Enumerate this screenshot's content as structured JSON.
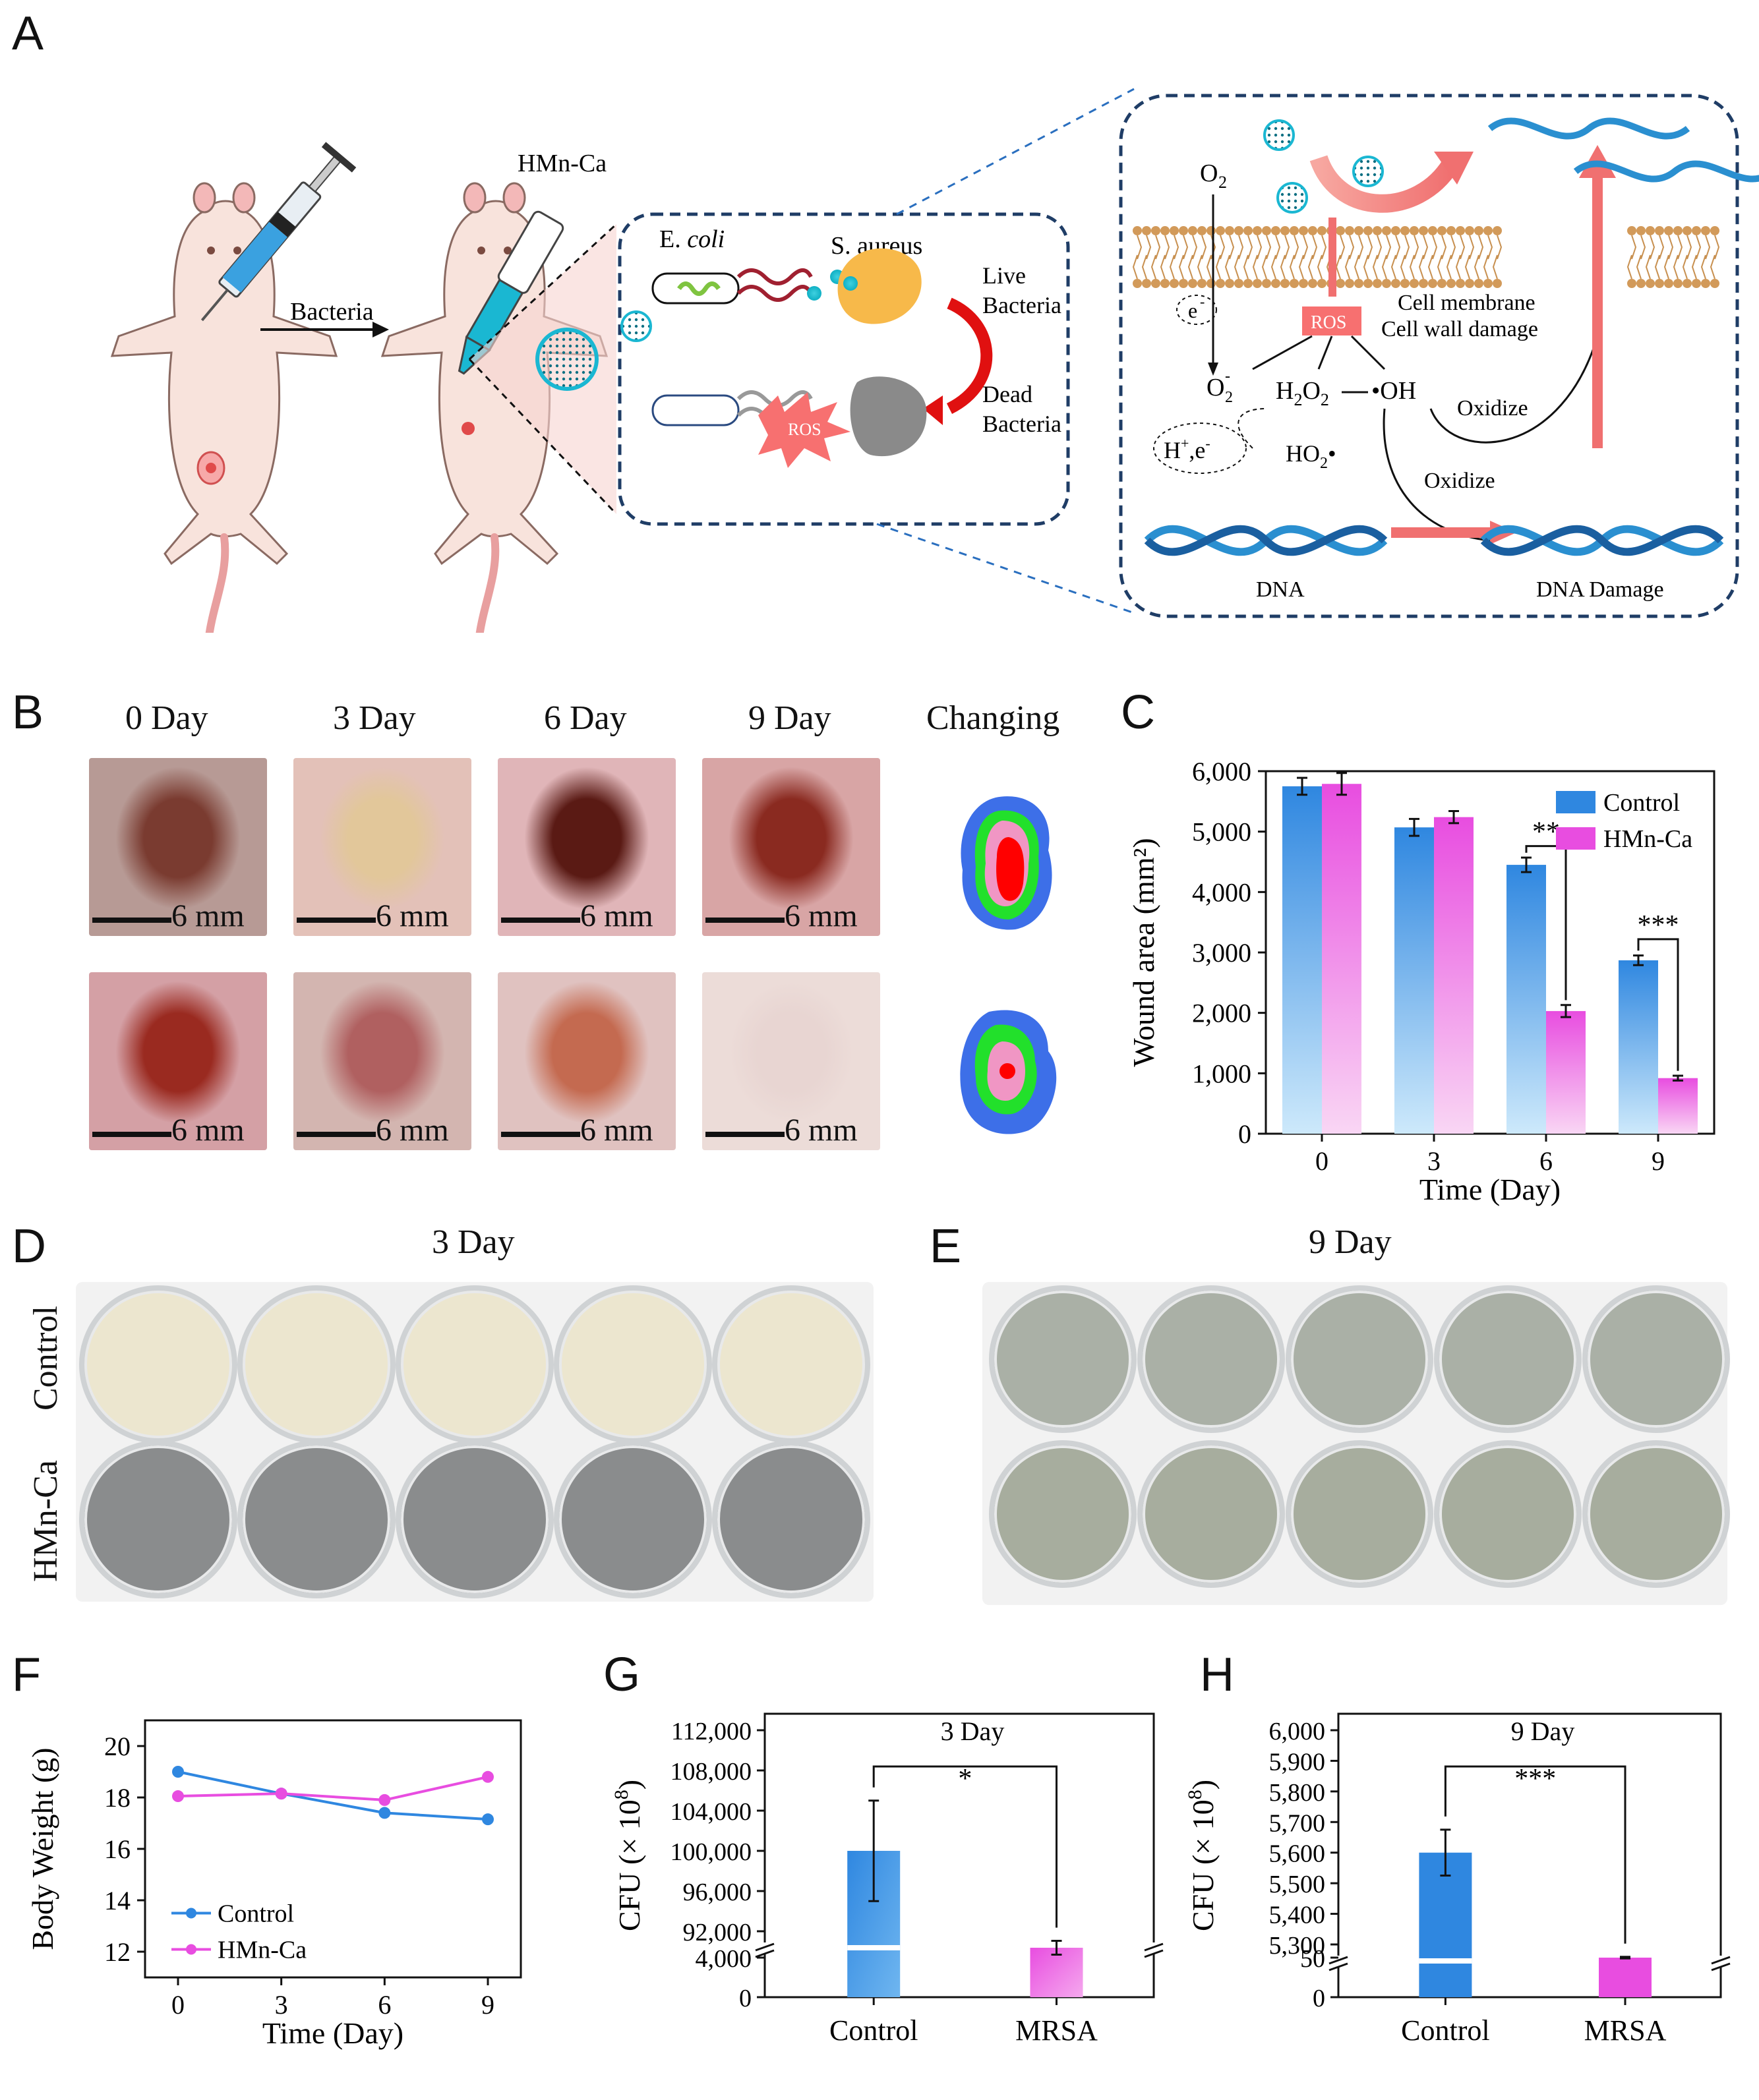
{
  "panels": {
    "A": "A",
    "B": "B",
    "C": "C",
    "D": "D",
    "E": "E",
    "F": "F",
    "G": "G",
    "H": "H"
  },
  "panelA": {
    "hmn_label": "HMn-Ca",
    "bacteria_label": "Bacteria",
    "ecoli": "E. ",
    "ecoli_italic": "coli",
    "saureus": "S. aureus",
    "live": [
      "Live",
      "Bacteria"
    ],
    "dead": [
      "Dead",
      "Bacteria"
    ],
    "ros": "ROS",
    "o2": "O",
    "o2_sub": "2",
    "e_minus": "e",
    "e_minus_sup": "-",
    "ros_box": "ROS",
    "membrane": [
      "Cell membrane",
      "Cell wall damage"
    ],
    "o2_radical": "O",
    "o2_radical_sub": "2",
    "o2_radical_sup": "-",
    "h2o2": "H",
    "h2o2_sub": "2",
    "h2o2_mid": "O",
    "h2o2_sub2": "2",
    "oh": "•OH",
    "hplus": "H",
    "hplus_sup": "+",
    "hplus_tail": ",e",
    "hplus_tail_sup": "-",
    "ho2": "HO",
    "ho2_sub": "2",
    "ho2_dot": "•",
    "oxidize1": "Oxidize",
    "oxidize2": "Oxidize",
    "dna": "DNA",
    "dna_damage": "DNA Damage"
  },
  "panelB": {
    "days": [
      "0 Day",
      "3 Day",
      "6 Day",
      "9 Day"
    ],
    "changing": "Changing",
    "scale": "6 mm"
  },
  "panelD": {
    "title": "3 Day",
    "rows": [
      "Control",
      "HMn-Ca"
    ]
  },
  "panelE": {
    "title": "9 Day"
  },
  "colors": {
    "control": "#2f87e0",
    "hmn": "#e84de0",
    "control_light": "#c9e6fa",
    "hmn_light": "#f8cdf3"
  },
  "chart_data": [
    {
      "id": "C",
      "type": "bar",
      "categories": [
        "0",
        "3",
        "6",
        "9"
      ],
      "series": [
        {
          "name": "Control",
          "values": [
            5750,
            5070,
            4450,
            2870
          ],
          "errors": [
            140,
            140,
            120,
            80
          ]
        },
        {
          "name": "HMn-Ca",
          "values": [
            5790,
            5240,
            2030,
            920
          ],
          "errors": [
            180,
            100,
            100,
            40
          ]
        }
      ],
      "xlabel": "Time (Day)",
      "ylabel": "Wound area (mm²)",
      "ylim": [
        0,
        6000
      ],
      "yticks": [
        "0",
        "1,000",
        "2,000",
        "3,000",
        "4,000",
        "5,000",
        "6,000"
      ],
      "annotations": [
        "**",
        "***"
      ]
    },
    {
      "id": "F",
      "type": "line",
      "x": [
        0,
        3,
        6,
        9
      ],
      "xticks": [
        "0",
        "3",
        "6",
        "9"
      ],
      "series": [
        {
          "name": "Control",
          "values": [
            19.0,
            18.15,
            17.4,
            17.15
          ],
          "errors": [
            0.1,
            0.15,
            0.12,
            0.12
          ]
        },
        {
          "name": "HMn-Ca",
          "values": [
            18.05,
            18.15,
            17.9,
            18.8
          ],
          "errors": [
            0.08,
            0.12,
            0.1,
            0.12
          ]
        }
      ],
      "xlabel": "Time (Day)",
      "ylabel": "Body Weight (g)",
      "ylim": [
        11,
        21
      ],
      "yticks": [
        "12",
        "14",
        "16",
        "18",
        "20"
      ]
    },
    {
      "id": "G",
      "type": "bar",
      "title": "3 Day",
      "categories": [
        "Control",
        "MRSA"
      ],
      "values": [
        100000,
        5000
      ],
      "errors": [
        5000,
        700
      ],
      "ylabel": "CFU (× 10",
      "ylabel_sup": "8",
      "ylabel_end": ")",
      "yticks_low": [
        "0",
        "4,000"
      ],
      "yticks_high": [
        "92,000",
        "96,000",
        "100,000",
        "104,000",
        "108,000",
        "112,000"
      ],
      "annotation": "*"
    },
    {
      "id": "H",
      "type": "bar",
      "title": "9 Day",
      "categories": [
        "Control",
        "MRSA"
      ],
      "values": [
        5600,
        50
      ],
      "errors": [
        75,
        1
      ],
      "ylabel": "CFU (× 10",
      "ylabel_sup": "8",
      "ylabel_end": ")",
      "yticks_low": [
        "0",
        "50"
      ],
      "yticks_high": [
        "5,300",
        "5,400",
        "5,500",
        "5,600",
        "5,700",
        "5,800",
        "5,900",
        "6,000"
      ],
      "annotation": "***"
    }
  ]
}
